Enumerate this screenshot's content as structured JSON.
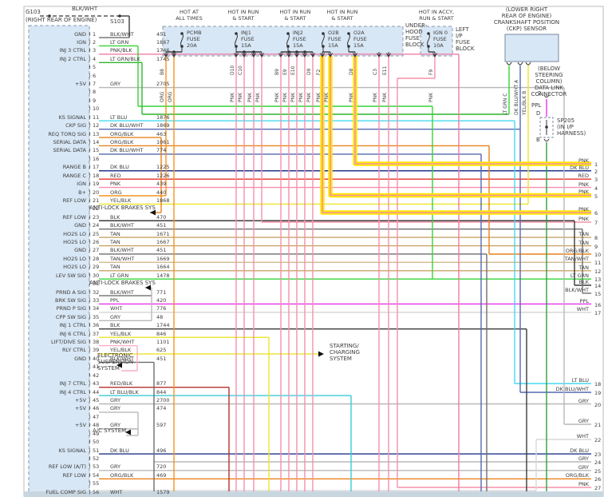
{
  "palette": {
    "PNK": "#f590ac",
    "PNK/BLK": "#ef7ca2",
    "PNK/WHT": "#f9afc4",
    "ORG": "#f5941e",
    "ORG/BLK": "#e8821a",
    "RED": "#e63229",
    "RED/BLK": "#b5332c",
    "DK BLU": "#20358c",
    "DK BLU/WHT": "#5568b0",
    "LT BLU": "#45d8ef",
    "LT BLU/BLK": "#38ccd8",
    "LT GRN": "#35d435",
    "LT GRN/BLK": "#2fb52f",
    "GRN": "#2f9e38",
    "TAN": "#c9a465",
    "TAN/WHT": "#d2b98f",
    "YEL/BLK": "#ece32a",
    "YEL_HL": "#ffe800",
    "PPL": "#e833e8",
    "GRY": "#b8b8b8",
    "BLK": "#3a3a3a",
    "BLK/WHT": "#6e6e6e",
    "WHT": "#d8d8d8",
    "box_fill": "#d8e7f5"
  },
  "g103": {
    "name": "G103",
    "location": "(RIGHT REAR OF ENGINE)",
    "wire": "BLK/WHT",
    "splice": "S103"
  },
  "top": {
    "fuse_groups": [
      {
        "header1": "HOT AT",
        "header2": "ALL TIMES",
        "fuses": [
          {
            "name": "PCMB",
            "mid": "FUSE",
            "rating": "20A"
          }
        ]
      },
      {
        "header1": "HOT IN RUN",
        "header2": "& START",
        "fuses": [
          {
            "name": "INJ1",
            "mid": "FUSE",
            "rating": "15A"
          }
        ]
      },
      {
        "header1": "HOT IN RUN",
        "header2": "& START",
        "fuses": [
          {
            "name": "INJ2",
            "mid": "FUSE",
            "rating": "15A"
          }
        ]
      },
      {
        "header1": "HOT IN RUN",
        "header2": "& START",
        "fuses": [
          {
            "name": "O2B",
            "mid": "FUSE",
            "rating": "15A"
          },
          {
            "name": "O2A",
            "mid": "FUSE",
            "rating": "15A"
          }
        ]
      },
      {
        "header1": "HOT IN ACCY,",
        "header2": "RUN & START",
        "fuses": [
          {
            "name": "IGN 0",
            "mid": "FUSE",
            "rating": "10A"
          }
        ]
      }
    ],
    "underhood_block": [
      "UNDER-",
      "HOOD",
      "FUSE",
      "BLOCK"
    ],
    "leftip_block": [
      "LEFT",
      "I/P",
      "FUSE",
      "BLOCK"
    ],
    "ckp": {
      "title": [
        "(LOWER RIGHT",
        "REAR OF ENGINE)",
        "CRANKSHAFT POSITION",
        "(CKP) SENSOR"
      ],
      "wires": [
        {
          "color": "LT GRN",
          "pin": "C"
        },
        {
          "color": "DK BLU/WHT",
          "pin": "A"
        },
        {
          "color": "YEL/BLK",
          "pin": "B"
        }
      ]
    },
    "dlc": {
      "title": [
        "(BELOW",
        "STEERING",
        "COLUMN)",
        "DATA LINK",
        "CONNECTOR"
      ],
      "pin": "2",
      "wire": "PPL",
      "term_d": "D",
      "term_b": "B",
      "splice": "SP205",
      "splice_note": [
        "(IN I/P",
        "HARNESS)"
      ]
    }
  },
  "wire_drops": [
    {
      "tag": "B8",
      "color": "ORG"
    },
    {
      "tag": "",
      "color": "ORG"
    },
    {
      "tag": "D10",
      "color": "PNK"
    },
    {
      "tag": "C10",
      "color": "PNK"
    },
    {
      "tag": "",
      "color": "PNK"
    },
    {
      "tag": "",
      "color": "PNK"
    },
    {
      "tag": "B9",
      "color": "PNK"
    },
    {
      "tag": "E9",
      "color": "PNK"
    },
    {
      "tag": "E10",
      "color": "PNK"
    },
    {
      "tag": "",
      "color": "PNK"
    },
    {
      "tag": "D9",
      "color": "PNK"
    },
    {
      "tag": "F2",
      "color": "PNK"
    },
    {
      "tag": "",
      "color": "PNK"
    },
    {
      "tag": "D8",
      "color": "PNK"
    },
    {
      "tag": "C3",
      "color": "PNK"
    },
    {
      "tag": "E11",
      "color": "PNK"
    },
    {
      "tag": "F9",
      "color": "PNK"
    }
  ],
  "left_connector": {
    "rows": [
      {
        "n": "1",
        "label": "GND",
        "color": "BLK/WHT",
        "circuit": "451"
      },
      {
        "n": "2",
        "label": "IGN",
        "color": "LT GRN",
        "circuit": "1867"
      },
      {
        "n": "3",
        "label": "INJ 3 CTRL",
        "color": "PNK/BLK",
        "circuit": "1746"
      },
      {
        "n": "4",
        "label": "INJ 2 CTRL",
        "color": "LT GRN/BLK",
        "circuit": "1745"
      },
      {
        "n": "5",
        "label": "",
        "color": "",
        "circuit": ""
      },
      {
        "n": "6",
        "label": "",
        "color": "",
        "circuit": ""
      },
      {
        "n": "7",
        "label": "+5V",
        "color": "GRY",
        "circuit": "2705"
      },
      {
        "n": "8",
        "label": "",
        "color": "",
        "circuit": ""
      },
      {
        "n": "9",
        "label": "",
        "color": "",
        "circuit": ""
      },
      {
        "n": "10",
        "label": "",
        "color": "",
        "circuit": ""
      },
      {
        "n": "11",
        "label": "KS SIGNAL",
        "color": "LT BLU",
        "circuit": "1876"
      },
      {
        "n": "12",
        "label": "CKP SIG",
        "color": "DK BLU/WHT",
        "circuit": "1869"
      },
      {
        "n": "13",
        "label": "REQ TORQ SIG",
        "color": "ORG/BLK",
        "circuit": "463"
      },
      {
        "n": "14",
        "label": "SERIAL DATA",
        "color": "ORG/BLK",
        "circuit": "1061"
      },
      {
        "n": "15",
        "label": "SERIAL DATA",
        "color": "DK BLU/WHT",
        "circuit": "774"
      },
      {
        "n": "16",
        "label": "",
        "color": "",
        "circuit": ""
      },
      {
        "n": "17",
        "label": "RANGE B",
        "color": "DK BLU",
        "circuit": "1225"
      },
      {
        "n": "18",
        "label": "RANGE C",
        "color": "RED",
        "circuit": "1226"
      },
      {
        "n": "19",
        "label": "IGN",
        "color": "PNK",
        "circuit": "439"
      },
      {
        "n": "20",
        "label": "B+",
        "color": "ORG",
        "circuit": "440"
      },
      {
        "n": "21",
        "label": "REF LOW",
        "color": "YEL/BLK",
        "circuit": "1868"
      },
      {
        "n": "22",
        "label": "",
        "color": "",
        "circuit": ""
      },
      {
        "n": "23",
        "label": "REF LOW",
        "color": "BLK",
        "circuit": "470"
      },
      {
        "n": "24",
        "label": "GND",
        "color": "BLK/WHT",
        "circuit": "451"
      },
      {
        "n": "25",
        "label": "HO2S LO",
        "color": "TAN",
        "circuit": "1671"
      },
      {
        "n": "26",
        "label": "HO2S LO",
        "color": "TAN",
        "circuit": "1667"
      },
      {
        "n": "27",
        "label": "GND",
        "color": "BLK/WHT",
        "circuit": "451"
      },
      {
        "n": "28",
        "label": "HO2S LO",
        "color": "TAN/WHT",
        "circuit": "1669"
      },
      {
        "n": "29",
        "label": "HO2S LO",
        "color": "TAN",
        "circuit": "1664"
      },
      {
        "n": "30",
        "label": "LEV SW SIG",
        "color": "LT GRN",
        "circuit": "1478"
      },
      {
        "n": "31",
        "label": "",
        "color": "",
        "circuit": ""
      },
      {
        "n": "32",
        "label": "PRND A SIG",
        "color": "BLK/WHT",
        "circuit": "771"
      },
      {
        "n": "33",
        "label": "BRK SW SIG",
        "color": "PPL",
        "circuit": "420"
      },
      {
        "n": "34",
        "label": "PRND P SIG",
        "color": "WHT",
        "circuit": "776"
      },
      {
        "n": "35",
        "label": "CPP SW SIG",
        "color": "GRY",
        "circuit": "48"
      },
      {
        "n": "36",
        "label": "INJ 1 CTRL",
        "color": "BLK",
        "circuit": "1744"
      },
      {
        "n": "37",
        "label": "INJ 6 CTRL",
        "color": "YEL/BLK",
        "circuit": "846"
      },
      {
        "n": "38",
        "label": "LIFT/DIVE SIG",
        "color": "PNK/WHT",
        "circuit": "1101"
      },
      {
        "n": "39",
        "label": "RLY CTRL",
        "color": "YEL/BLK",
        "circuit": "625"
      },
      {
        "n": "40",
        "label": "GND",
        "color": "BLK/WHT",
        "circuit": "451"
      },
      {
        "n": "41",
        "label": "",
        "color": "",
        "circuit": ""
      },
      {
        "n": "42",
        "label": "",
        "color": "",
        "circuit": ""
      },
      {
        "n": "43",
        "label": "INJ 7 CTRL",
        "color": "RED/BLK",
        "circuit": "877"
      },
      {
        "n": "44",
        "label": "INJ 4 CTRL",
        "color": "LT BLU/BLK",
        "circuit": "844"
      },
      {
        "n": "45",
        "label": "+5V",
        "color": "GRY",
        "circuit": "2700"
      },
      {
        "n": "46",
        "label": "+5V",
        "color": "GRY",
        "circuit": "474"
      },
      {
        "n": "47",
        "label": "",
        "color": "",
        "circuit": ""
      },
      {
        "n": "48",
        "label": "+5V",
        "color": "GRY",
        "circuit": "597"
      },
      {
        "n": "49",
        "label": "",
        "color": "",
        "circuit": ""
      },
      {
        "n": "50",
        "label": "",
        "color": "",
        "circuit": ""
      },
      {
        "n": "51",
        "label": "KS SIGNAL",
        "color": "DK BLU",
        "circuit": "496"
      },
      {
        "n": "52",
        "label": "",
        "color": "",
        "circuit": ""
      },
      {
        "n": "53",
        "label": "REF LOW (A/T)",
        "color": "GRY",
        "circuit": "720"
      },
      {
        "n": "54",
        "label": "REF LOW",
        "color": "ORG/BLK",
        "circuit": "469"
      },
      {
        "n": "55",
        "label": "",
        "color": "",
        "circuit": ""
      },
      {
        "n": "56",
        "label": "FUEL COMP SIG",
        "color": "WHT",
        "circuit": "1579"
      }
    ]
  },
  "right_pins": [
    {
      "n": "1",
      "color": "PNK"
    },
    {
      "n": "2",
      "color": "DK BLU"
    },
    {
      "n": "3",
      "color": "RED"
    },
    {
      "n": "4",
      "color": "PNK"
    },
    {
      "n": "5",
      "color": "PNK"
    },
    {
      "n": "6",
      "color": "PNK"
    },
    {
      "n": "7",
      "color": "PNK"
    },
    {
      "n": "8",
      "color": "TAN"
    },
    {
      "n": "9",
      "color": "TAN"
    },
    {
      "n": "10",
      "color": "ORG/BLK"
    },
    {
      "n": "11",
      "color": "TAN/WHT"
    },
    {
      "n": "12",
      "color": "TAN"
    },
    {
      "n": "13",
      "color": "LT GRN"
    },
    {
      "n": "14",
      "color": "BLK"
    },
    {
      "n": "15",
      "color": "BLK/WHT"
    },
    {
      "n": "16",
      "color": "PPL"
    },
    {
      "n": "17",
      "color": "WHT"
    },
    {
      "n": "18",
      "color": "LT BLU"
    },
    {
      "n": "19",
      "color": "DK BLU/WHT"
    },
    {
      "n": "20",
      "color": "GRY"
    },
    {
      "n": "21",
      "color": "GRY"
    },
    {
      "n": "22",
      "color": "WHT"
    },
    {
      "n": "23",
      "color": "DK BLU"
    },
    {
      "n": "24",
      "color": "GRY"
    },
    {
      "n": "25",
      "color": "GRY"
    },
    {
      "n": "26",
      "color": "ORG/BLK"
    },
    {
      "n": "27",
      "color": "PNK"
    }
  ],
  "callouts": {
    "abs1": "ANTI-LOCK BRAKES SYS",
    "abs2": "ANTI-LOCK BRAKES SYS",
    "ess": [
      "ELECTRONIC",
      "SUSPENSION",
      "SYSTEM"
    ],
    "ac": "A/C SYSTEM",
    "starting": [
      "STARTING/",
      "CHARGING",
      "SYSTEM"
    ]
  }
}
